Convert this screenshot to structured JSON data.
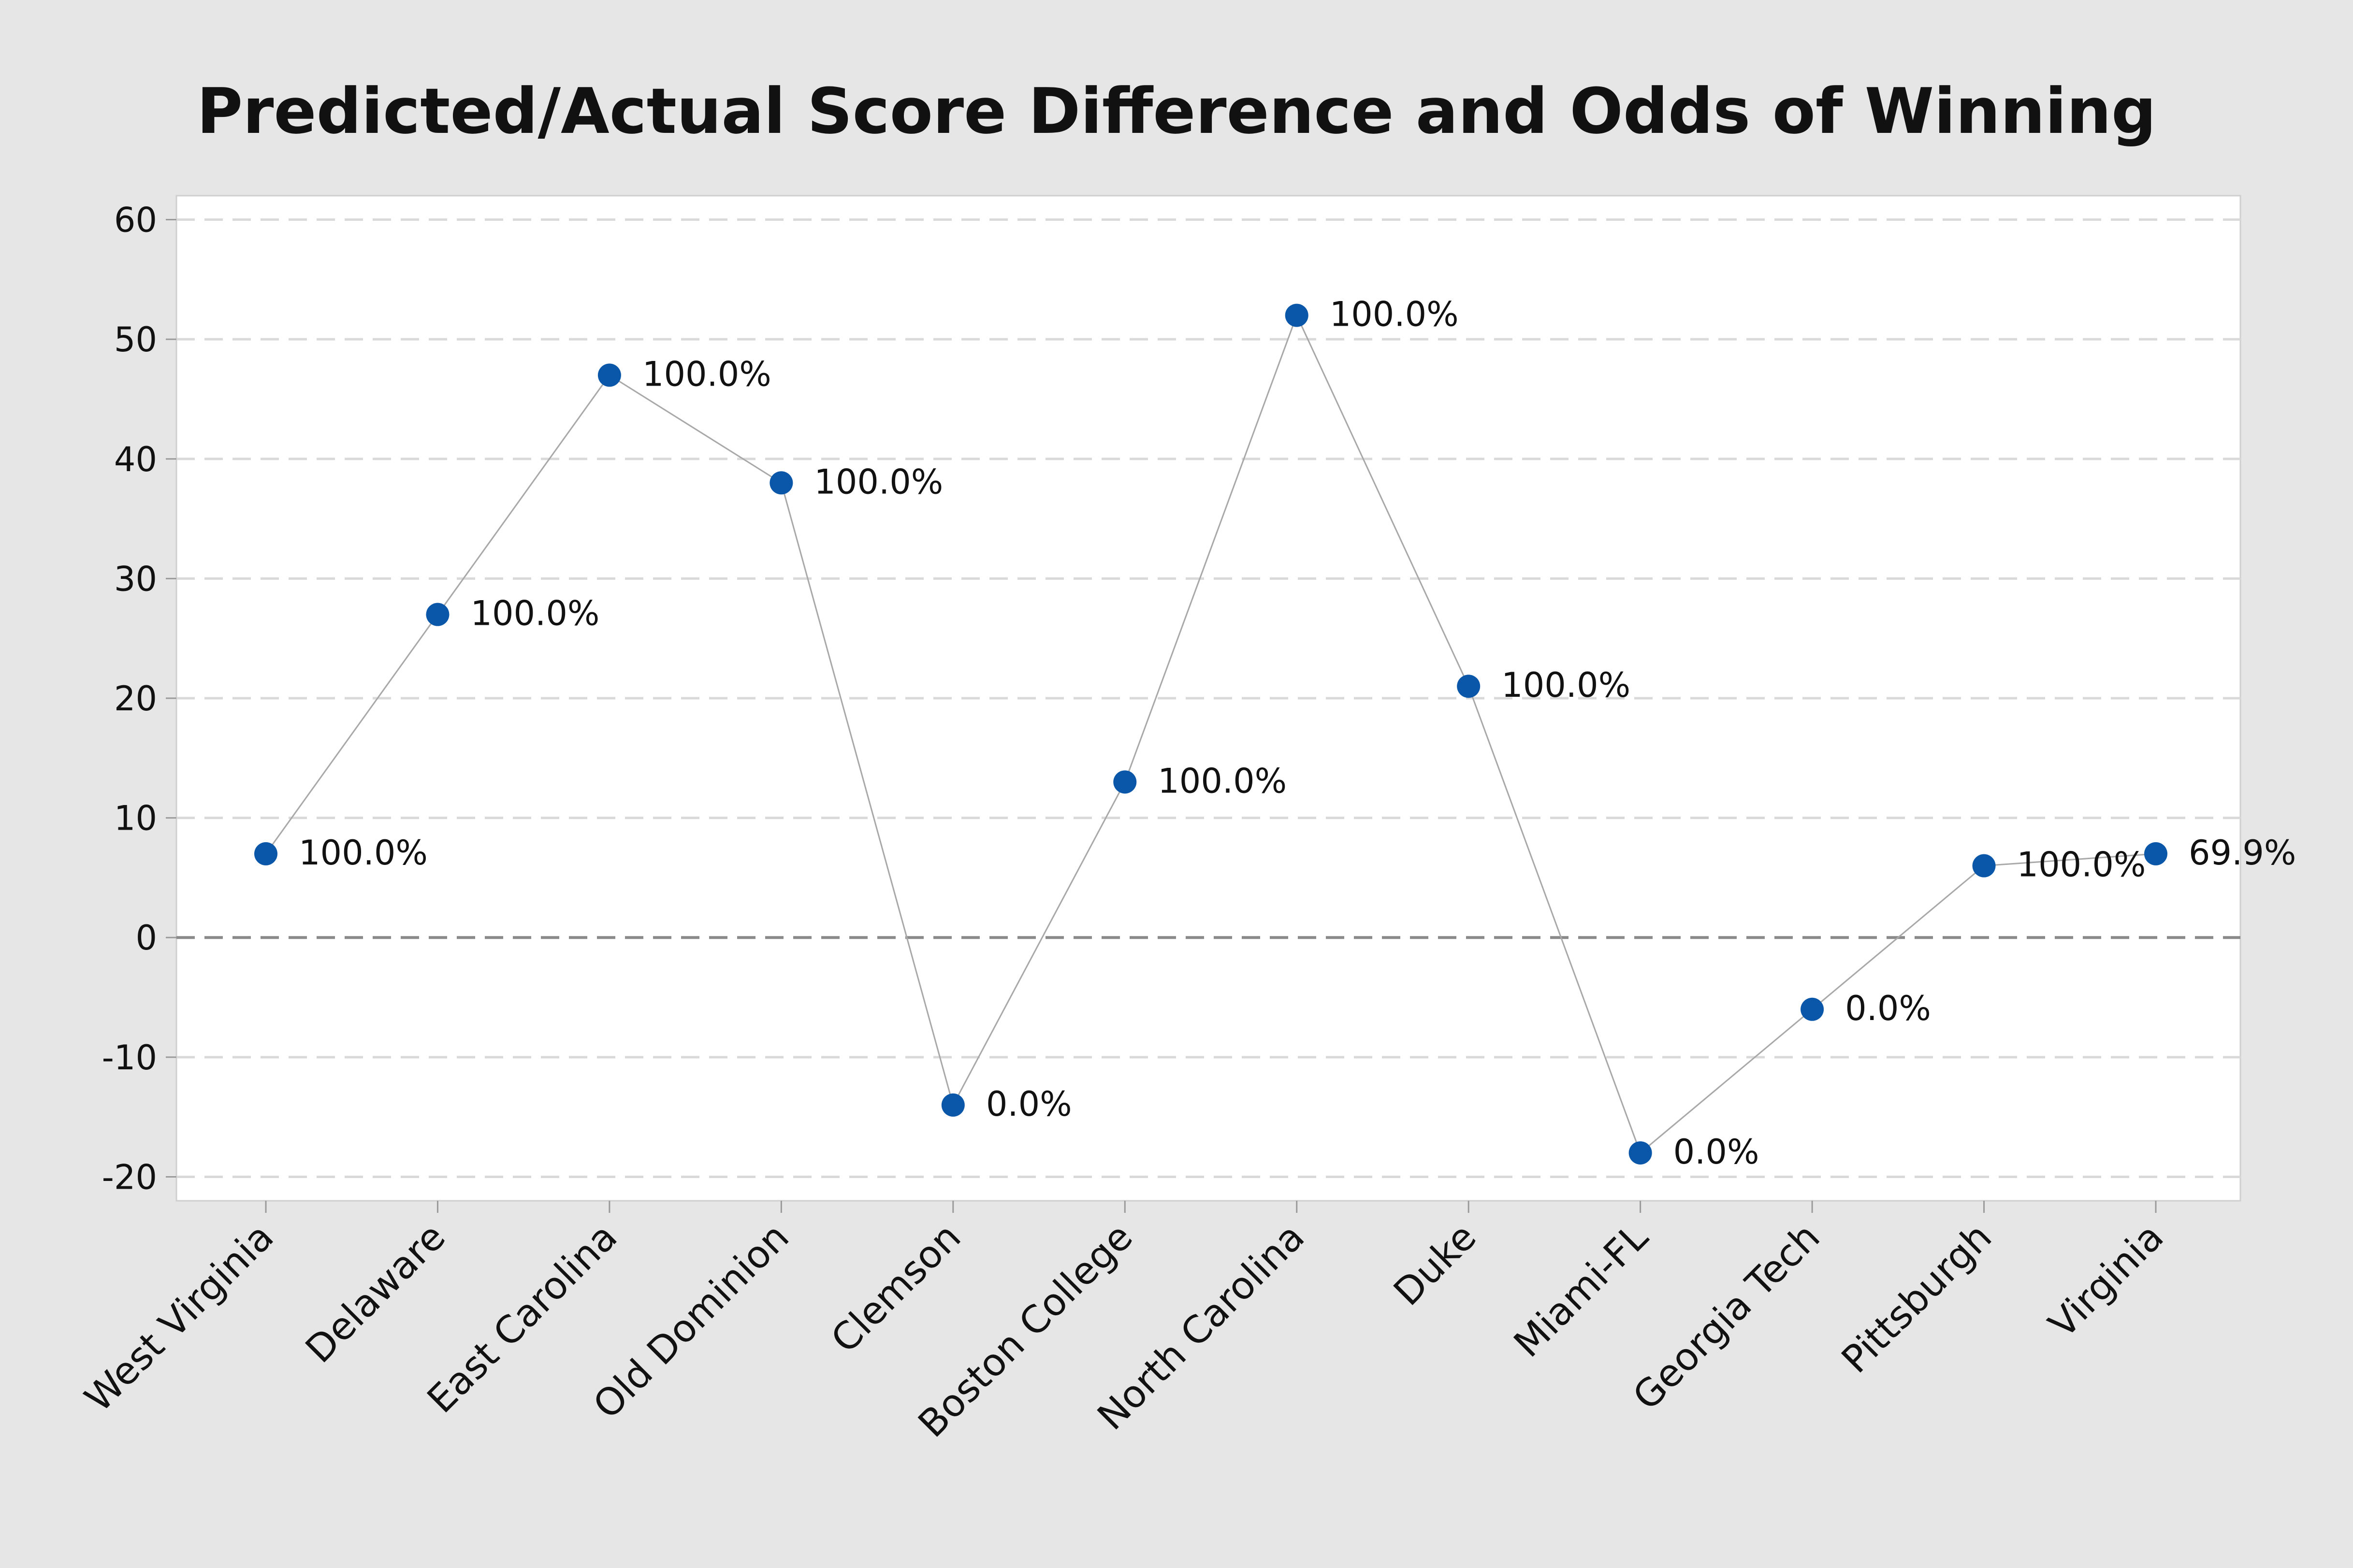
{
  "chart_data": {
    "type": "line",
    "title": "Predicted/Actual Score Difference and Odds of Winning",
    "xlabel": "",
    "ylabel": "",
    "categories": [
      "West Virginia",
      "Delaware",
      "East Carolina",
      "Old Dominion",
      "Clemson",
      "Boston College",
      "North Carolina",
      "Duke",
      "Miami-FL",
      "Georgia Tech",
      "Pittsburgh",
      "Virginia"
    ],
    "series": [
      {
        "values": [
          7,
          27,
          47,
          38,
          -14,
          13,
          52,
          21,
          -18,
          -6,
          6,
          7
        ],
        "labels": [
          "100.0%",
          "100.0%",
          "100.0%",
          "100.0%",
          "0.0%",
          "100.0%",
          "100.0%",
          "100.0%",
          "0.0%",
          "0.0%",
          "100.0%",
          "69.9%"
        ]
      }
    ],
    "ylim": [
      -22,
      62
    ],
    "yticks": [
      60,
      50,
      40,
      30,
      20,
      10,
      0,
      -10,
      -20
    ],
    "grid": true,
    "reference_line_y": 0,
    "colors": {
      "marker": "#0a56a8",
      "line": "#a8a8a8",
      "grid": "#d9d9d9",
      "reference": "#8a8a8a",
      "plot_background": "#ffffff",
      "page_background": "#e6e6e6"
    }
  }
}
